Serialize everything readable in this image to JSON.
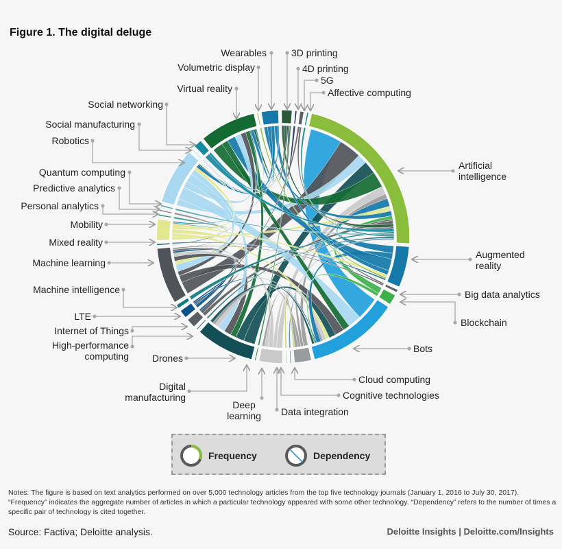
{
  "title": "Figure 1. The digital deluge",
  "chart_data": {
    "type": "chord",
    "segments": [
      {
        "name": "Artificial intelligence",
        "label": "Artificial\nintelligence",
        "color": "#8bbd3c",
        "frequency": 80
      },
      {
        "name": "Augmented reality",
        "label": "Augmented\nreality",
        "color": "#1478a8",
        "frequency": 19
      },
      {
        "name": "Big data analytics",
        "label": "Big data analytics",
        "color": "#5a5f63",
        "frequency": 1.5
      },
      {
        "name": "Blockchain",
        "label": "Blockchain",
        "color": "#3db04a",
        "frequency": 5
      },
      {
        "name": "Bots",
        "label": "Bots",
        "color": "#22a0db",
        "frequency": 42
      },
      {
        "name": "Cloud computing",
        "label": "Cloud computing",
        "color": "#9a9b9c",
        "frequency": 8
      },
      {
        "name": "Cognitive technologies",
        "label": "Cognitive technologies",
        "color": "#5a8fb0",
        "frequency": 0.8
      },
      {
        "name": "Data integration",
        "label": "Data integration",
        "color": "#c8d26a",
        "frequency": 0.8
      },
      {
        "name": "Deep learning",
        "label": "Deep\nlearning",
        "color": "#c9c9c9",
        "frequency": 11
      },
      {
        "name": "Digital manufacturing",
        "label": "Digital\nmanufacturing",
        "color": "#1c7a3a",
        "frequency": 0.8
      },
      {
        "name": "Drones",
        "label": "Drones",
        "color": "#124f56",
        "frequency": 27
      },
      {
        "name": "High-performance computing",
        "label": "High-performance\ncomputing",
        "color": "#2a6b6b",
        "frequency": 0.8
      },
      {
        "name": "Internet of Things",
        "label": "Internet of Things",
        "color": "#5a5e62",
        "frequency": 4.5
      },
      {
        "name": "LTE",
        "label": "LTE",
        "color": "#0a5388",
        "frequency": 4
      },
      {
        "name": "Machine intelligence",
        "label": "Machine intelligence",
        "color": "#0d7b80",
        "frequency": 2
      },
      {
        "name": "Machine learning",
        "label": "Machine learning",
        "color": "#505458",
        "frequency": 26
      },
      {
        "name": "Mixed reality",
        "label": "Mixed reality",
        "color": "#1a6b8a",
        "frequency": 1
      },
      {
        "name": "Mobility",
        "label": "Mobility",
        "color": "#e3e690",
        "frequency": 10
      },
      {
        "name": "Personal analytics",
        "label": "Personal analytics",
        "color": "#3e9e8c",
        "frequency": 1
      },
      {
        "name": "Predictive analytics",
        "label": "Predictive analytics",
        "color": "#8a8a8a",
        "frequency": 1
      },
      {
        "name": "Quantum computing",
        "label": "Quantum computing",
        "color": "#4da6b8",
        "frequency": 1
      },
      {
        "name": "Robotics",
        "label": "Robotics",
        "color": "#a7d8f0",
        "frequency": 26
      },
      {
        "name": "Social manufacturing",
        "label": "Social manufacturing",
        "color": "#cfe4ee",
        "frequency": 1
      },
      {
        "name": "Social networking",
        "label": "Social networking",
        "color": "#1589a0",
        "frequency": 4
      },
      {
        "name": "Virtual reality",
        "label": "Virtual reality",
        "color": "#136b33",
        "frequency": 26
      },
      {
        "name": "Volumetric display",
        "label": "Volumetric display",
        "color": "#8bbd3c",
        "frequency": 0.8
      },
      {
        "name": "Wearables",
        "label": "Wearables",
        "color": "#1478a8",
        "frequency": 8
      },
      {
        "name": "3D printing",
        "label": "3D printing",
        "color": "#285a3a",
        "frequency": 5
      },
      {
        "name": "4D printing",
        "label": "4D printing",
        "color": "#222a55",
        "frequency": 1
      },
      {
        "name": "5G",
        "label": "5G",
        "color": "#5f6265",
        "frequency": 2
      },
      {
        "name": "Affective computing",
        "label": "Affective computing",
        "color": "#1a8a8a",
        "frequency": 1
      }
    ],
    "dependencies": [
      [
        "Artificial intelligence",
        "Bots",
        20
      ],
      [
        "Artificial intelligence",
        "Machine learning",
        14
      ],
      [
        "Artificial intelligence",
        "Robotics",
        6
      ],
      [
        "Artificial intelligence",
        "Drones",
        8
      ],
      [
        "Artificial intelligence",
        "Virtual reality",
        10
      ],
      [
        "Artificial intelligence",
        "Deep learning",
        5
      ],
      [
        "Artificial intelligence",
        "Cloud computing",
        3
      ],
      [
        "Artificial intelligence",
        "Augmented reality",
        5
      ],
      [
        "Artificial intelligence",
        "Mobility",
        3
      ],
      [
        "Artificial intelligence",
        "Wearables",
        3
      ],
      [
        "Artificial intelligence",
        "Blockchain",
        2
      ],
      [
        "Artificial intelligence",
        "Big data analytics",
        1
      ],
      [
        "Artificial intelligence",
        "Internet of Things",
        2
      ],
      [
        "Bots",
        "Robotics",
        12
      ],
      [
        "Bots",
        "Virtual reality",
        6
      ],
      [
        "Bots",
        "Machine learning",
        8
      ],
      [
        "Bots",
        "Drones",
        6
      ],
      [
        "Bots",
        "Mobility",
        3
      ],
      [
        "Bots",
        "Deep learning",
        3
      ],
      [
        "Bots",
        "Cloud computing",
        2
      ],
      [
        "Bots",
        "Augmented reality",
        4
      ],
      [
        "Virtual reality",
        "Augmented reality",
        8
      ],
      [
        "Virtual reality",
        "Robotics",
        6
      ],
      [
        "Virtual reality",
        "Machine learning",
        5
      ],
      [
        "Virtual reality",
        "Drones",
        4
      ],
      [
        "Virtual reality",
        "Mixed reality",
        1
      ],
      [
        "Virtual reality",
        "Wearables",
        3
      ],
      [
        "Machine learning",
        "Robotics",
        8
      ],
      [
        "Machine learning",
        "Mobility",
        4
      ],
      [
        "Machine learning",
        "Drones",
        5
      ],
      [
        "Machine learning",
        "Deep learning",
        4
      ],
      [
        "Machine learning",
        "LTE",
        2
      ],
      [
        "Machine learning",
        "Internet of Things",
        2
      ],
      [
        "Robotics",
        "Drones",
        5
      ],
      [
        "Robotics",
        "Mobility",
        3
      ],
      [
        "Robotics",
        "Wearables",
        3
      ],
      [
        "Drones",
        "Deep learning",
        3
      ],
      [
        "Drones",
        "Cloud computing",
        2
      ],
      [
        "Augmented reality",
        "Wearables",
        3
      ],
      [
        "Augmented reality",
        "Mobility",
        2
      ],
      [
        "Cloud computing",
        "Deep learning",
        2
      ],
      [
        "3D printing",
        "Artificial intelligence",
        2
      ],
      [
        "3D printing",
        "Virtual reality",
        2
      ],
      [
        "3D printing",
        "Robotics",
        1
      ],
      [
        "5G",
        "LTE",
        1
      ],
      [
        "5G",
        "Artificial intelligence",
        1
      ],
      [
        "Social networking",
        "Artificial intelligence",
        2
      ],
      [
        "Social networking",
        "Virtual reality",
        1
      ],
      [
        "Machine intelligence",
        "Artificial intelligence",
        1
      ],
      [
        "LTE",
        "Bots",
        1
      ],
      [
        "Blockchain",
        "Bots",
        1
      ],
      [
        "Quantum computing",
        "Artificial intelligence",
        1
      ],
      [
        "Predictive analytics",
        "Machine learning",
        1
      ],
      [
        "Personal analytics",
        "Mobility",
        1
      ],
      [
        "Affective computing",
        "Artificial intelligence",
        1
      ],
      [
        "4D printing",
        "3D printing",
        1
      ],
      [
        "Volumetric display",
        "Augmented reality",
        1
      ],
      [
        "High-performance computing",
        "Artificial intelligence",
        1
      ],
      [
        "Digital manufacturing",
        "3D printing",
        1
      ],
      [
        "Cognitive technologies",
        "Artificial intelligence",
        1
      ],
      [
        "Data integration",
        "Cloud computing",
        1
      ],
      [
        "Mixed reality",
        "Augmented reality",
        1
      ],
      [
        "Social manufacturing",
        "Robotics",
        1
      ],
      [
        "Big data analytics",
        "Machine learning",
        1
      ],
      [
        "Wearables",
        "Mobility",
        1
      ],
      [
        "Internet of Things",
        "LTE",
        1
      ],
      [
        "Drones",
        "Bots",
        2
      ]
    ]
  },
  "legend": {
    "frequency": "Frequency",
    "dependency": "Dependency",
    "frequency_color": "#8bbd3c",
    "dependency_color": "#4da6d8"
  },
  "notes": "Notes: The figure is based on text analytics performed on over 5,000 technology articles from the top five technology journals (January 1, 2016 to July 30, 2017). “Frequency” indicates the aggregate number of articles in which a particular technology appeared with some other technology. “Dependency” refers to the number of times a specific pair of technology is cited together.",
  "source": "Source: Factiva; Deloitte analysis.",
  "credit": "Deloitte Insights |  Deloitte.com/Insights"
}
